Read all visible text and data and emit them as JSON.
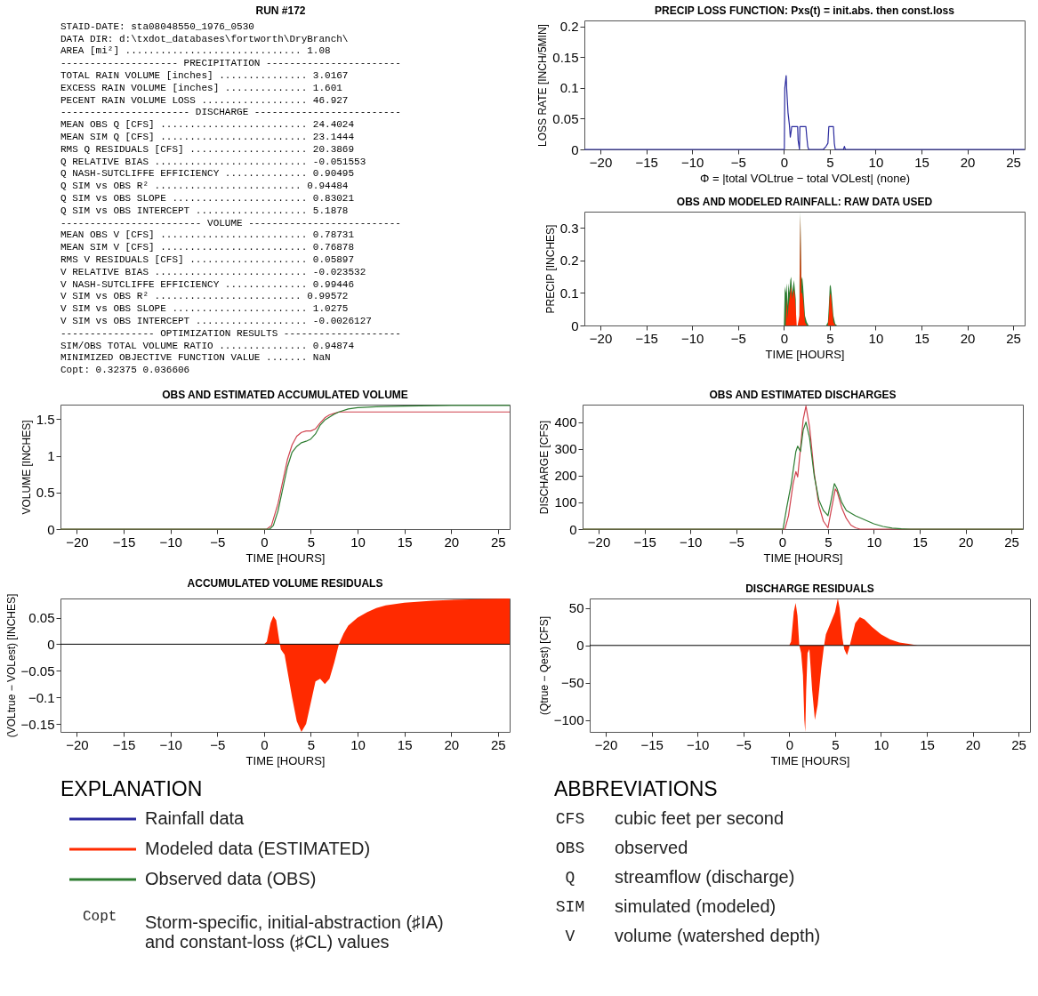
{
  "chart_data": [
    {
      "type": "other",
      "title": "RUN #172",
      "annotations": [
        "STAID-DATE: sta08048550_1976_0530",
        "DATA DIR: d:\\txdot_databases\\fortworth\\DryBranch\\",
        "AREA [mi²] .............................. 1.08",
        "-------------------- PRECIPITATION -----------------------",
        "TOTAL RAIN VOLUME [inches] ............... 3.0167",
        "EXCESS RAIN VOLUME [inches] .............. 1.601",
        "PECENT RAIN VOLUME LOSS .................. 46.927",
        "---------------------- DISCHARGE -------------------------",
        "MEAN OBS Q [CFS] ......................... 24.4024",
        "MEAN SIM Q [CFS] ......................... 23.1444",
        "RMS Q RESIDUALS [CFS] .................... 20.3869",
        "Q RELATIVE BIAS .......................... -0.051553",
        "Q NASH-SUTCLIFFE EFFICIENCY .............. 0.90495",
        "Q SIM vs OBS R² ......................... 0.94484",
        "Q SIM vs OBS SLOPE ....................... 0.83021",
        "Q SIM vs OBS INTERCEPT ................... 5.1878",
        "------------------------ VOLUME --------------------------",
        "MEAN OBS V [CFS] ......................... 0.78731",
        "MEAN SIM V [CFS] ......................... 0.76878",
        "RMS V RESIDUALS [CFS] .................... 0.05897",
        "V RELATIVE BIAS .......................... -0.023532",
        "V NASH-SUTCLIFFE EFFICIENCY .............. 0.99446",
        "V SIM vs OBS R² ......................... 0.99572",
        "V SIM vs OBS SLOPE ....................... 1.0275",
        "V SIM vs OBS INTERCEPT ................... -0.0026127",
        "---------------- OPTIMIZATION RESULTS --------------------",
        "SIM/OBS TOTAL VOLUME RATIO ............... 0.94874",
        "MINIMIZED OBJECTIVE FUNCTION VALUE ....... NaN",
        "Copt: 0.32375     0.036606"
      ]
    },
    {
      "type": "line",
      "title": "PRECIP LOSS FUNCTION: Pxs(t) = init.abs. then const.loss",
      "xlabel": "Φ = |total VOLtrue − total VOLest| (none)",
      "ylabel": "LOSS RATE [INCH/5MIN]",
      "xlim": [
        -21.75,
        26.25
      ],
      "xticks": [
        -20,
        -15,
        -10,
        -5,
        0,
        5,
        10,
        15,
        20,
        25
      ],
      "ylim": [
        0,
        0.21
      ],
      "yticks": [
        0,
        0.05,
        0.1,
        0.15,
        0.2
      ],
      "grid": false,
      "series": [
        {
          "color": "#2b2b9e",
          "x": [
            -21.75,
            0.05,
            0.1,
            0.25,
            0.3,
            0.45,
            0.6,
            0.7,
            0.8,
            0.85,
            1.5,
            1.55,
            1.7,
            1.75,
            2.4,
            2.5,
            2.6,
            2.7,
            4.3,
            4.6,
            4.8,
            4.9,
            5.4,
            5.5,
            5.6,
            6.5,
            6.6,
            6.7,
            26.25
          ],
          "values": [
            0,
            0,
            0.1,
            0.12,
            0.1,
            0.06,
            0.04,
            0.02,
            0.03,
            0.037,
            0.037,
            0.015,
            0,
            0.037,
            0.037,
            0.02,
            0.005,
            0,
            0,
            0.005,
            0.01,
            0.037,
            0.037,
            0.01,
            0,
            0,
            0.005,
            0,
            0
          ]
        }
      ]
    },
    {
      "type": "area",
      "title": "OBS AND MODELED RAINFALL: RAW DATA USED",
      "xlabel": "TIME [HOURS]",
      "ylabel": "PRECIP [INCHES]",
      "xlim": [
        -21.75,
        26.25
      ],
      "xticks": [
        -20,
        -15,
        -10,
        -5,
        0,
        5,
        10,
        15,
        20,
        25
      ],
      "ylim": [
        0,
        0.35
      ],
      "yticks": [
        0,
        0.1,
        0.2,
        0.3
      ],
      "grid": false,
      "series": [
        {
          "color": "#2e7d32",
          "x": [
            -21.75,
            0,
            0.1,
            0.2,
            0.3,
            0.4,
            0.5,
            0.6,
            0.7,
            0.8,
            0.9,
            1.0,
            1.1,
            1.2,
            1.3,
            1.4,
            1.5,
            1.7,
            1.8,
            1.9,
            2.0,
            2.1,
            2.3,
            2.5,
            2.7,
            4.6,
            4.8,
            4.9,
            5.0,
            5.1,
            5.2,
            5.4,
            5.6,
            5.8,
            26.25
          ],
          "values": [
            0,
            0,
            0.12,
            0.1,
            0.13,
            0.06,
            0.13,
            0.1,
            0.14,
            0.15,
            0.1,
            0.12,
            0.14,
            0.11,
            0.08,
            null,
            null,
            0.12,
            0.35,
            0.14,
            0.15,
            0.12,
            0.03,
            0.01,
            0,
            0,
            0.01,
            0.06,
            0.12,
            0.125,
            0.1,
            0.03,
            0.005,
            0,
            0
          ]
        },
        {
          "color": "#ff2a00",
          "x": [
            -21.75,
            0.2,
            0.3,
            0.4,
            0.5,
            0.7,
            0.8,
            0.9,
            1.0,
            1.1,
            1.2,
            1.3,
            1.4,
            1.5,
            1.7,
            1.8,
            1.9,
            2.0,
            2.1,
            2.3,
            2.5,
            4.8,
            4.9,
            5.0,
            5.1,
            5.2,
            5.4,
            5.6,
            26.25
          ],
          "values": [
            0,
            0,
            0.08,
            0.02,
            0.06,
            0.1,
            0.12,
            0.08,
            0.1,
            0.11,
            0.09,
            0.05,
            0,
            0,
            0.03,
            0.34,
            0.1,
            0.1,
            0.08,
            0.01,
            0,
            0,
            0.03,
            0.09,
            0.1,
            0.07,
            0.01,
            0,
            0
          ]
        }
      ]
    },
    {
      "type": "line",
      "title": "OBS AND ESTIMATED ACCUMULATED VOLUME",
      "xlabel": "TIME [HOURS]",
      "ylabel": "VOLUME [INCHES]",
      "xlim": [
        -21.75,
        26.25
      ],
      "xticks": [
        -20,
        -15,
        -10,
        -5,
        0,
        5,
        10,
        15,
        20,
        25
      ],
      "ylim": [
        0,
        1.7
      ],
      "yticks": [
        0,
        0.5,
        1,
        1.5
      ],
      "grid": false,
      "series": [
        {
          "color": "#d0424e",
          "x": [
            -21.75,
            0.3,
            0.8,
            1.5,
            2,
            2.5,
            3,
            3.5,
            4,
            4.5,
            5,
            5.5,
            6,
            6.5,
            7,
            7.5,
            8,
            9,
            26.25
          ],
          "values": [
            0,
            0,
            0.05,
            0.35,
            0.65,
            0.95,
            1.15,
            1.27,
            1.32,
            1.34,
            1.34,
            1.37,
            1.45,
            1.52,
            1.56,
            1.58,
            1.6,
            1.6,
            1.6
          ]
        },
        {
          "color": "#2e7d32",
          "x": [
            -21.75,
            0.6,
            1,
            1.5,
            2,
            2.5,
            3,
            3.5,
            4,
            4.5,
            5,
            5.5,
            6,
            6.5,
            7,
            7.5,
            8,
            9,
            10,
            12,
            15,
            20,
            26.25
          ],
          "values": [
            0,
            0,
            0.05,
            0.25,
            0.55,
            0.85,
            1.05,
            1.13,
            1.18,
            1.2,
            1.23,
            1.3,
            1.42,
            1.49,
            1.53,
            1.57,
            1.6,
            1.64,
            1.66,
            1.67,
            1.68,
            1.69,
            1.69
          ]
        }
      ]
    },
    {
      "type": "line",
      "title": "OBS AND ESTIMATED DISCHARGES",
      "xlabel": "TIME [HOURS]",
      "ylabel": "DISCHARGE [CFS]",
      "xlim": [
        -21.75,
        26.25
      ],
      "xticks": [
        -20,
        -15,
        -10,
        -5,
        0,
        5,
        10,
        15,
        20,
        25
      ],
      "ylim": [
        0,
        465
      ],
      "yticks": [
        0,
        100,
        200,
        300,
        400
      ],
      "grid": false,
      "series": [
        {
          "color": "#d0424e",
          "x": [
            -21.75,
            0.3,
            0.7,
            1.2,
            1.5,
            1.7,
            2,
            2.3,
            2.6,
            3,
            3.5,
            4,
            4.5,
            5,
            5.3,
            5.8,
            6,
            6.5,
            7,
            7.5,
            8,
            8.5,
            26.25
          ],
          "values": [
            0,
            0,
            50,
            170,
            215,
            195,
            300,
            410,
            460,
            380,
            210,
            90,
            30,
            5,
            60,
            150,
            140,
            80,
            40,
            15,
            5,
            0,
            0
          ]
        },
        {
          "color": "#2e7d32",
          "x": [
            -21.75,
            0.1,
            0.5,
            1,
            1.5,
            1.7,
            2,
            2.3,
            2.6,
            3,
            3.5,
            4,
            4.5,
            5,
            5.3,
            5.7,
            6,
            6.5,
            7,
            8,
            9,
            10,
            11,
            12,
            13,
            14,
            26.25
          ],
          "values": [
            0,
            0,
            80,
            170,
            290,
            310,
            290,
            370,
            400,
            340,
            200,
            110,
            70,
            50,
            100,
            170,
            150,
            100,
            70,
            50,
            35,
            20,
            10,
            4,
            1,
            0,
            0
          ]
        }
      ]
    },
    {
      "type": "area",
      "title": "ACCUMULATED VOLUME RESIDUALS",
      "xlabel": "TIME [HOURS]",
      "ylabel": "(VOLtrue − VOLest) [INCHES]",
      "xlim": [
        -21.75,
        26.25
      ],
      "xticks": [
        -20,
        -15,
        -10,
        -5,
        0,
        5,
        10,
        15,
        20,
        25
      ],
      "ylim": [
        -0.165,
        0.086
      ],
      "yticks": [
        -0.15,
        -0.1,
        -0.05,
        0,
        0.05
      ],
      "grid": false,
      "ref_lines": [
        {
          "axis": "y",
          "value": 0,
          "color": "#000000"
        }
      ],
      "series": [
        {
          "color": "#ff2a00",
          "x": [
            -21.75,
            0,
            0.3,
            0.7,
            1,
            1.3,
            1.6,
            1.8,
            2.2,
            2.6,
            3,
            3.5,
            4,
            4.5,
            5,
            5.5,
            6,
            6.5,
            7,
            7.5,
            8,
            8.5,
            9,
            10,
            11,
            12,
            13,
            15,
            18,
            21,
            26.25
          ],
          "values": [
            0,
            0,
            0.005,
            0.04,
            0.053,
            0.045,
            0.01,
            -0.01,
            -0.02,
            -0.06,
            -0.1,
            -0.145,
            -0.165,
            -0.15,
            -0.11,
            -0.07,
            -0.065,
            -0.075,
            -0.065,
            -0.035,
            0,
            0.02,
            0.035,
            0.05,
            0.06,
            0.068,
            0.073,
            0.078,
            0.082,
            0.084,
            0.086
          ]
        }
      ]
    },
    {
      "type": "area",
      "title": "DISCHARGE RESIDUALS",
      "xlabel": "TIME [HOURS]",
      "ylabel": "(Qtrue − Qest) [CFS]",
      "xlim": [
        -21.75,
        26.25
      ],
      "xticks": [
        -20,
        -15,
        -10,
        -5,
        0,
        5,
        10,
        15,
        20,
        25
      ],
      "ylim": [
        -116,
        63
      ],
      "yticks": [
        -100,
        -50,
        0,
        50
      ],
      "grid": false,
      "ref_lines": [
        {
          "axis": "y",
          "value": 0,
          "color": "#000000"
        }
      ],
      "series": [
        {
          "color": "#ff2a00",
          "x": [
            -21.75,
            0,
            0.2,
            0.5,
            0.7,
            0.9,
            1.1,
            1.3,
            1.5,
            1.65,
            1.75,
            1.85,
            2,
            2.2,
            2.5,
            2.8,
            3.1,
            3.5,
            3.8,
            4,
            4.5,
            5,
            5.3,
            5.5,
            5.8,
            6,
            6.3,
            6.5,
            6.8,
            7.2,
            7.7,
            8.2,
            9,
            10,
            11,
            12,
            13,
            14,
            26.25
          ],
          "values": [
            0,
            0,
            5,
            45,
            57,
            40,
            0,
            -10,
            -40,
            -100,
            -116,
            -60,
            -10,
            -5,
            -60,
            -100,
            -80,
            -30,
            0,
            15,
            30,
            45,
            63,
            50,
            10,
            -5,
            -13,
            -5,
            10,
            30,
            38,
            35,
            25,
            15,
            8,
            4,
            2,
            0,
            0
          ]
        }
      ]
    },
    {
      "type": "other",
      "title": "EXPLANATION",
      "categories": [
        "Rainfall data",
        "Modeled data (ESTIMATED)",
        "Observed data (OBS)"
      ],
      "colors": [
        "#2b2b9e",
        "#ff2a00",
        "#2e7d32"
      ],
      "annotations": [
        "Copt",
        "Storm-specific, initial-abstraction (♯IA)\nand constant-loss (♯CL) values"
      ]
    },
    {
      "type": "other",
      "title": "ABBREVIATIONS",
      "categories": [
        "CFS",
        "OBS",
        "Q",
        "SIM",
        "V"
      ],
      "annotations": [
        "cubic feet per second",
        "observed",
        "streamflow (discharge)",
        "simulated (modeled)",
        "volume (watershed depth)"
      ]
    }
  ]
}
